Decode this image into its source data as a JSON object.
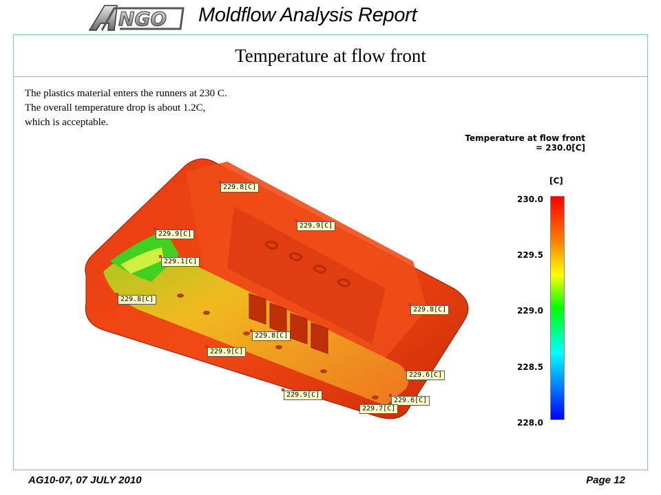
{
  "header": {
    "report_title": "Moldflow Analysis Report",
    "logo_text": "ANGO"
  },
  "slide": {
    "title": "Temperature at flow front",
    "description": [
      "The plastics material enters the runners at 230 C.",
      "The overall temperature drop is about  1.2C,",
      "which is acceptable."
    ]
  },
  "legend": {
    "title_line1": "Temperature at flow front",
    "title_line2": "= 230.0[C]",
    "unit": "[C]",
    "ticks": [
      "230.0",
      "229.5",
      "229.0",
      "228.5",
      "228.0"
    ]
  },
  "labels": [
    "229.8[C]",
    "229.9[C]",
    "229.9[C]",
    "229.1[C]",
    "229.8[C]",
    "229.8[C]",
    "229.8[C]",
    "229.9[C]",
    "229.6[C]",
    "229.9[C]",
    "229.6[C]",
    "229.7[C]"
  ],
  "footer": {
    "left": "AG10-07, 07 JULY 2010",
    "right": "Page 12"
  }
}
